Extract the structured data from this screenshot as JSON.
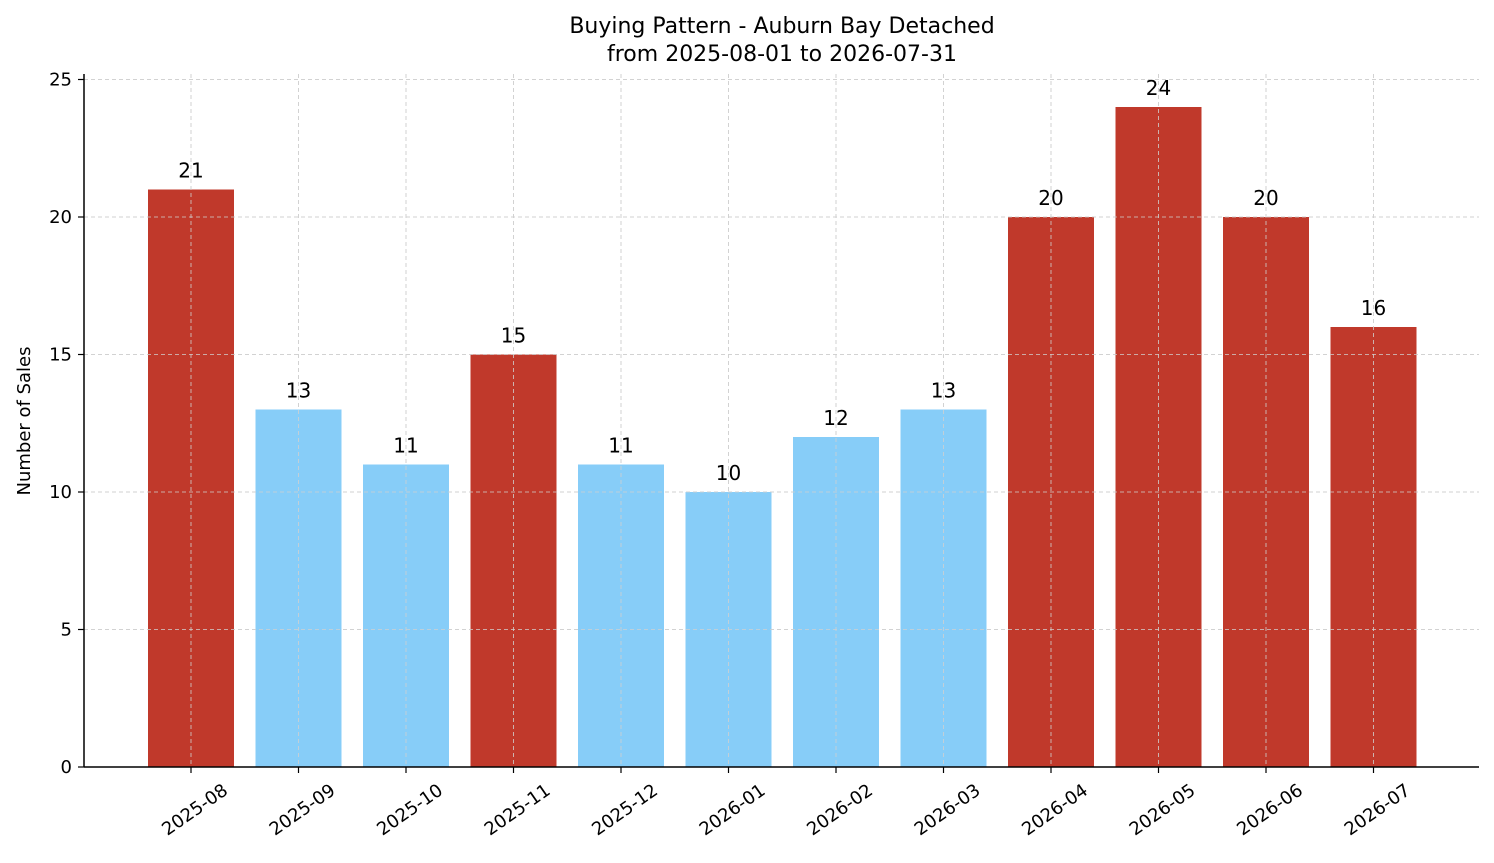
{
  "chart_data": {
    "type": "bar",
    "title": "Buying Pattern - Auburn Bay Detached",
    "subtitle": "from 2025-08-01 to 2026-07-31",
    "xlabel": "",
    "ylabel": "Number of Sales",
    "categories": [
      "2025-08",
      "2025-09",
      "2025-10",
      "2025-11",
      "2025-12",
      "2026-01",
      "2026-02",
      "2026-03",
      "2026-04",
      "2026-05",
      "2026-06",
      "2026-07"
    ],
    "values": [
      21,
      13,
      11,
      15,
      11,
      10,
      12,
      13,
      20,
      24,
      20,
      16
    ],
    "bar_colors": [
      "#c0392b",
      "#87cdf8",
      "#87cdf8",
      "#c0392b",
      "#87cdf8",
      "#87cdf8",
      "#87cdf8",
      "#87cdf8",
      "#c0392b",
      "#c0392b",
      "#c0392b",
      "#c0392b"
    ],
    "ylim": [
      0,
      25.2
    ],
    "yticks": [
      0,
      5,
      10,
      15,
      20,
      25
    ],
    "grid": true,
    "legend": "none"
  }
}
